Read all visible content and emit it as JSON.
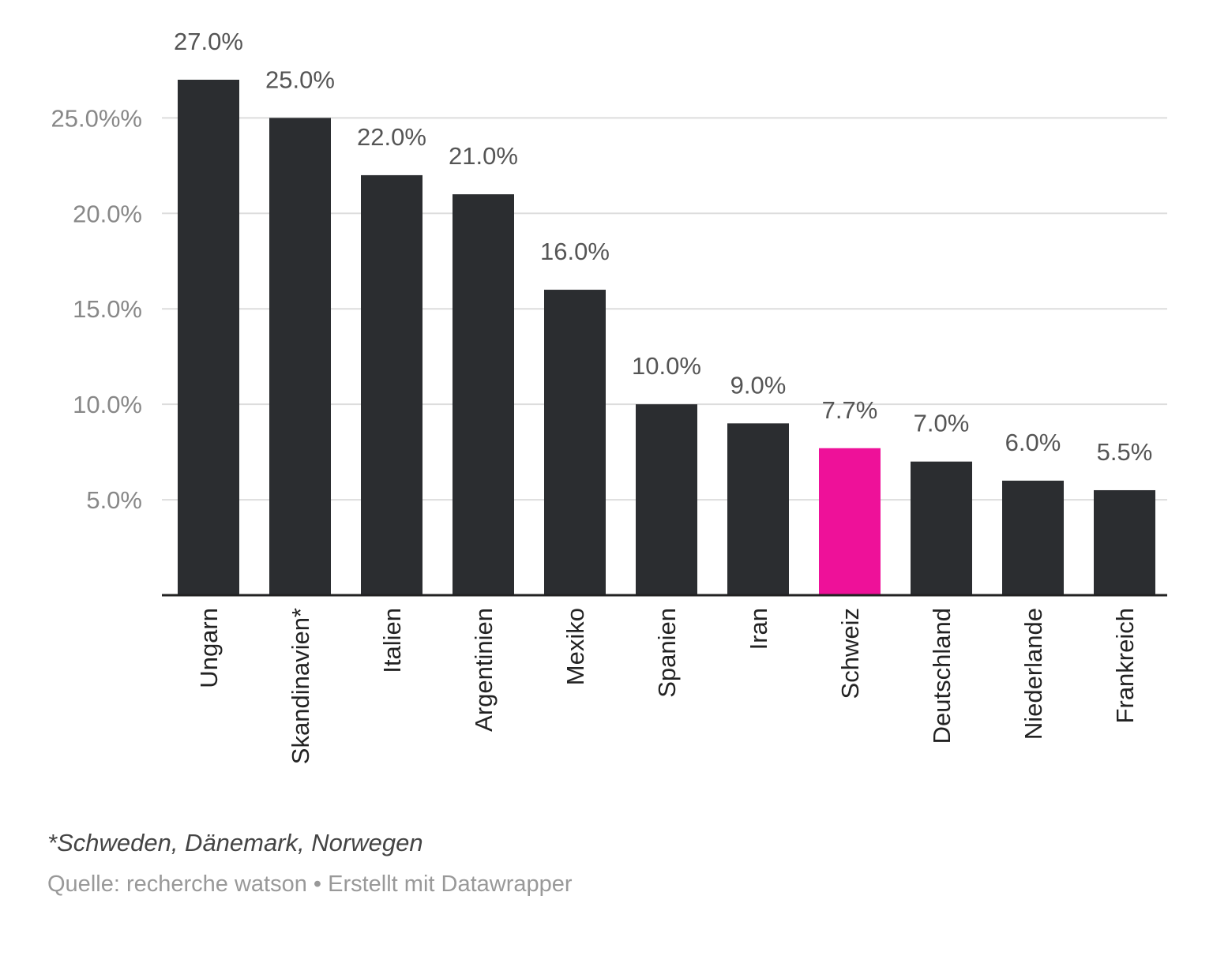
{
  "chart_data": {
    "type": "bar",
    "categories": [
      "Ungarn",
      "Skandinavien*",
      "Italien",
      "Argentinien",
      "Mexiko",
      "Spanien",
      "Iran",
      "Schweiz",
      "Deutschland",
      "Niederlande",
      "Frankreich"
    ],
    "values": [
      27.0,
      25.0,
      22.0,
      21.0,
      16.0,
      10.0,
      9.0,
      7.7,
      7.0,
      6.0,
      5.5
    ],
    "value_labels": [
      "27.0%",
      "25.0%",
      "22.0%",
      "21.0%",
      "16.0%",
      "10.0%",
      "9.0%",
      "7.7%",
      "7.0%",
      "6.0%",
      "5.5%"
    ],
    "highlight": "Schweiz",
    "ylim": [
      0,
      27
    ],
    "yticks": [
      5,
      10,
      15,
      20,
      25
    ],
    "ytick_labels": [
      "5.0%",
      "10.0%",
      "15.0%",
      "20.0%",
      "25.0%%"
    ],
    "grid": true,
    "title": "",
    "xlabel": "",
    "ylabel": ""
  },
  "colors": {
    "bar": "#2b2d30",
    "highlight": "#ee1199",
    "grid": "#dddddd",
    "axis": "#222222"
  },
  "notes": {
    "footnote": "*Schweden, Dänemark, Norwegen",
    "source": "Quelle: recherche watson • Erstellt mit Datawrapper"
  }
}
